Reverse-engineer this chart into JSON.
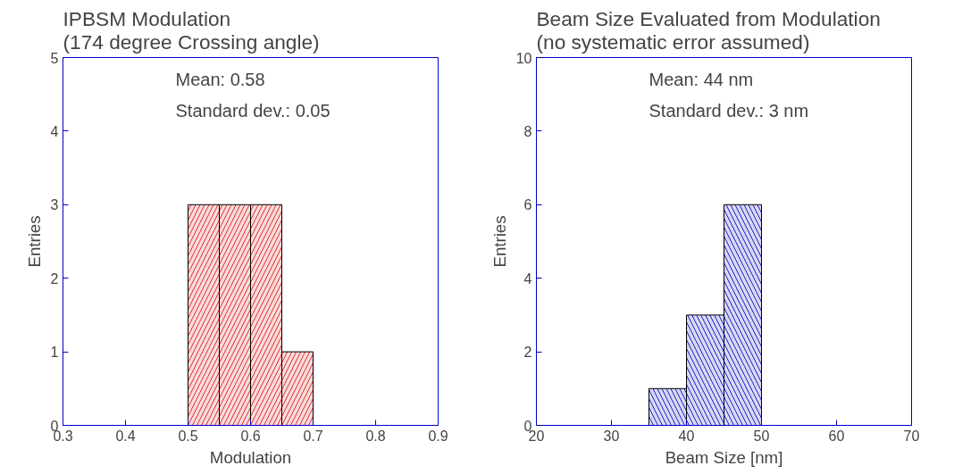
{
  "chart_data": [
    {
      "type": "histogram",
      "title": "IPBSM  Modulation\n(174 degree Crossing angle)",
      "xlabel": "Modulation",
      "ylabel": "Entries",
      "bins": [
        0.5,
        0.55,
        0.6,
        0.65,
        0.7
      ],
      "values": [
        3,
        3,
        3,
        1
      ],
      "color": "#e03030",
      "xlim": [
        0.3,
        0.9
      ],
      "xticks": [
        0.3,
        0.4,
        0.5,
        0.6,
        0.7,
        0.8,
        0.9
      ],
      "ylim": [
        0,
        5
      ],
      "yticks": [
        0,
        1,
        2,
        3,
        4,
        5
      ],
      "annotations": [
        "Mean: 0.58",
        "Standard dev.: 0.05"
      ],
      "grid": false
    },
    {
      "type": "histogram",
      "title": "Beam Size Evaluated from Modulation\n(no systematic error assumed)",
      "xlabel": "Beam Size [nm]",
      "ylabel": "Entries",
      "bins": [
        35,
        40,
        45,
        50
      ],
      "values": [
        1,
        3,
        6
      ],
      "color": "#2020c0",
      "xlim": [
        20,
        70
      ],
      "xticks": [
        20,
        30,
        40,
        50,
        60,
        70
      ],
      "ylim": [
        0,
        10
      ],
      "yticks": [
        0,
        2,
        4,
        6,
        8,
        10
      ],
      "annotations": [
        "Mean: 44 nm",
        "Standard dev.: 3 nm"
      ],
      "grid": false
    }
  ]
}
